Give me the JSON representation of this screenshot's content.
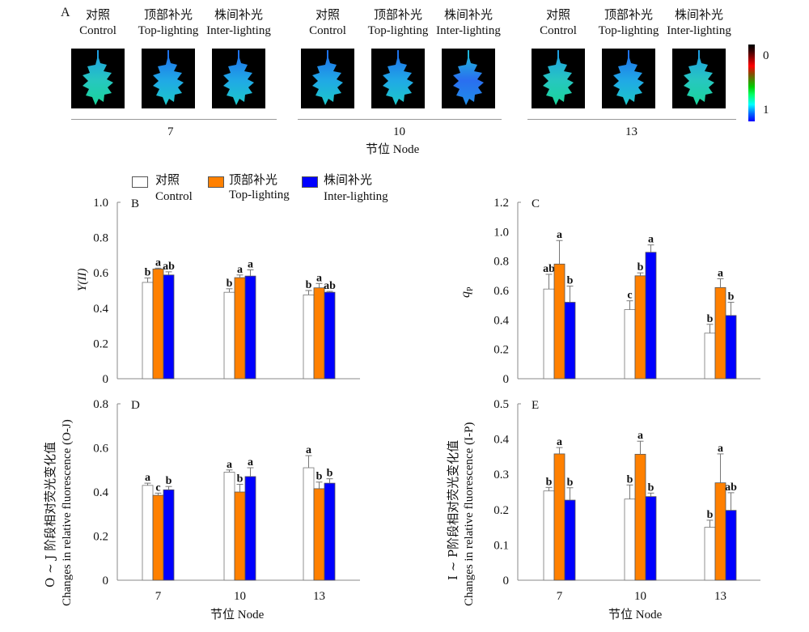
{
  "panel_a": {
    "label": "A",
    "groups": [
      {
        "node": "7",
        "columns": [
          {
            "cn": "对照",
            "en": "Control",
            "tone": "green"
          },
          {
            "cn": "顶部补光",
            "en": "Top-lighting",
            "tone": "cyan"
          },
          {
            "cn": "株间补光",
            "en": "Inter-lighting",
            "tone": "cyan"
          }
        ]
      },
      {
        "node": "10",
        "columns": [
          {
            "cn": "对照",
            "en": "Control",
            "tone": "cyan"
          },
          {
            "cn": "顶部补光",
            "en": "Top-lighting",
            "tone": "cyan"
          },
          {
            "cn": "株间补光",
            "en": "Inter-lighting",
            "tone": "blue"
          }
        ]
      },
      {
        "node": "13",
        "columns": [
          {
            "cn": "对照",
            "en": "Control",
            "tone": "green"
          },
          {
            "cn": "顶部补光",
            "en": "Top-lighting",
            "tone": "cyan"
          },
          {
            "cn": "株间补光",
            "en": "Inter-lighting",
            "tone": "green"
          }
        ]
      }
    ],
    "xlabel": "节位  Node",
    "colorbar": {
      "top_label": "0",
      "bottom_label": "1"
    }
  },
  "legend": [
    {
      "cn": "对照",
      "en": "Control",
      "color": "#ffffff"
    },
    {
      "cn": "顶部补光",
      "en": "Top-lighting",
      "color": "#ff8000"
    },
    {
      "cn": "株间补光",
      "en": "Inter-lighting",
      "color": "#0000ff"
    }
  ],
  "chart_data": [
    {
      "panel": "B",
      "type": "bar",
      "title": "B",
      "ylabel": "Y(II)",
      "xlabel": "",
      "categories": [
        "7",
        "10",
        "13"
      ],
      "ylim": [
        0,
        1.0
      ],
      "yticks": [
        "0",
        "0.2",
        "0.4",
        "0.6",
        "0.8",
        "1.0"
      ],
      "series": [
        {
          "name": "Control",
          "values": [
            0.546,
            0.49,
            0.475
          ],
          "errors": [
            0.025,
            0.02,
            0.025
          ],
          "letters": [
            "b",
            "b",
            "b"
          ]
        },
        {
          "name": "Top-lighting",
          "values": [
            0.622,
            0.573,
            0.515
          ],
          "errors": [
            0.005,
            0.015,
            0.025
          ],
          "letters": [
            "a",
            "a",
            "a"
          ]
        },
        {
          "name": "Inter-lighting",
          "values": [
            0.588,
            0.582,
            0.49
          ],
          "errors": [
            0.018,
            0.035,
            0.005
          ],
          "letters": [
            "ab",
            "a",
            "ab"
          ]
        }
      ]
    },
    {
      "panel": "C",
      "type": "bar",
      "title": "C",
      "ylabel": "qP",
      "xlabel": "",
      "categories": [
        "7",
        "10",
        "13"
      ],
      "ylim": [
        0,
        1.2
      ],
      "yticks": [
        "0",
        "0.2",
        "0.4",
        "0.6",
        "0.8",
        "1.0",
        "1.2"
      ],
      "series": [
        {
          "name": "Control",
          "values": [
            0.61,
            0.47,
            0.31
          ],
          "errors": [
            0.1,
            0.06,
            0.06
          ],
          "letters": [
            "ab",
            "c",
            "b"
          ]
        },
        {
          "name": "Top-lighting",
          "values": [
            0.78,
            0.7,
            0.62
          ],
          "errors": [
            0.16,
            0.02,
            0.06
          ],
          "letters": [
            "a",
            "b",
            "a"
          ]
        },
        {
          "name": "Inter-lighting",
          "values": [
            0.52,
            0.86,
            0.43
          ],
          "errors": [
            0.11,
            0.05,
            0.09
          ],
          "letters": [
            "b",
            "a",
            "b"
          ]
        }
      ]
    },
    {
      "panel": "D",
      "type": "bar",
      "title": "D",
      "ylabel_cn": "O ~ J 阶段相对荧光变化值",
      "ylabel": "Changes in relative fluorescence (O-J)",
      "xlabel": "节位  Node",
      "categories": [
        "7",
        "10",
        "13"
      ],
      "ylim": [
        0,
        0.8
      ],
      "yticks": [
        "0",
        "0.2",
        "0.4",
        "0.6",
        "0.8"
      ],
      "series": [
        {
          "name": "Control",
          "values": [
            0.43,
            0.49,
            0.51
          ],
          "errors": [
            0.01,
            0.01,
            0.055
          ],
          "letters": [
            "a",
            "a",
            "a"
          ]
        },
        {
          "name": "Top-lighting",
          "values": [
            0.385,
            0.4,
            0.415
          ],
          "errors": [
            0.01,
            0.035,
            0.03
          ],
          "letters": [
            "c",
            "b",
            "b"
          ]
        },
        {
          "name": "Inter-lighting",
          "values": [
            0.41,
            0.47,
            0.44
          ],
          "errors": [
            0.015,
            0.04,
            0.02
          ],
          "letters": [
            "b",
            "a",
            "b"
          ]
        }
      ]
    },
    {
      "panel": "E",
      "type": "bar",
      "title": "E",
      "ylabel_cn": "I ~ P阶段相对荧光变化值",
      "ylabel": "Changes in relative fluorescence (I-P)",
      "xlabel": "节位  Node",
      "categories": [
        "7",
        "10",
        "13"
      ],
      "ylim": [
        0,
        0.5
      ],
      "yticks": [
        "0",
        "0.1",
        "0.2",
        "0.3",
        "0.4",
        "0.5"
      ],
      "series": [
        {
          "name": "Control",
          "values": [
            0.253,
            0.23,
            0.15
          ],
          "errors": [
            0.01,
            0.04,
            0.02
          ],
          "letters": [
            "b",
            "b",
            "b"
          ]
        },
        {
          "name": "Top-lighting",
          "values": [
            0.358,
            0.357,
            0.276
          ],
          "errors": [
            0.018,
            0.037,
            0.082
          ],
          "letters": [
            "a",
            "a",
            "a"
          ]
        },
        {
          "name": "Inter-lighting",
          "values": [
            0.227,
            0.237,
            0.198
          ],
          "errors": [
            0.035,
            0.01,
            0.05
          ],
          "letters": [
            "b",
            "b",
            "ab"
          ]
        }
      ]
    }
  ]
}
